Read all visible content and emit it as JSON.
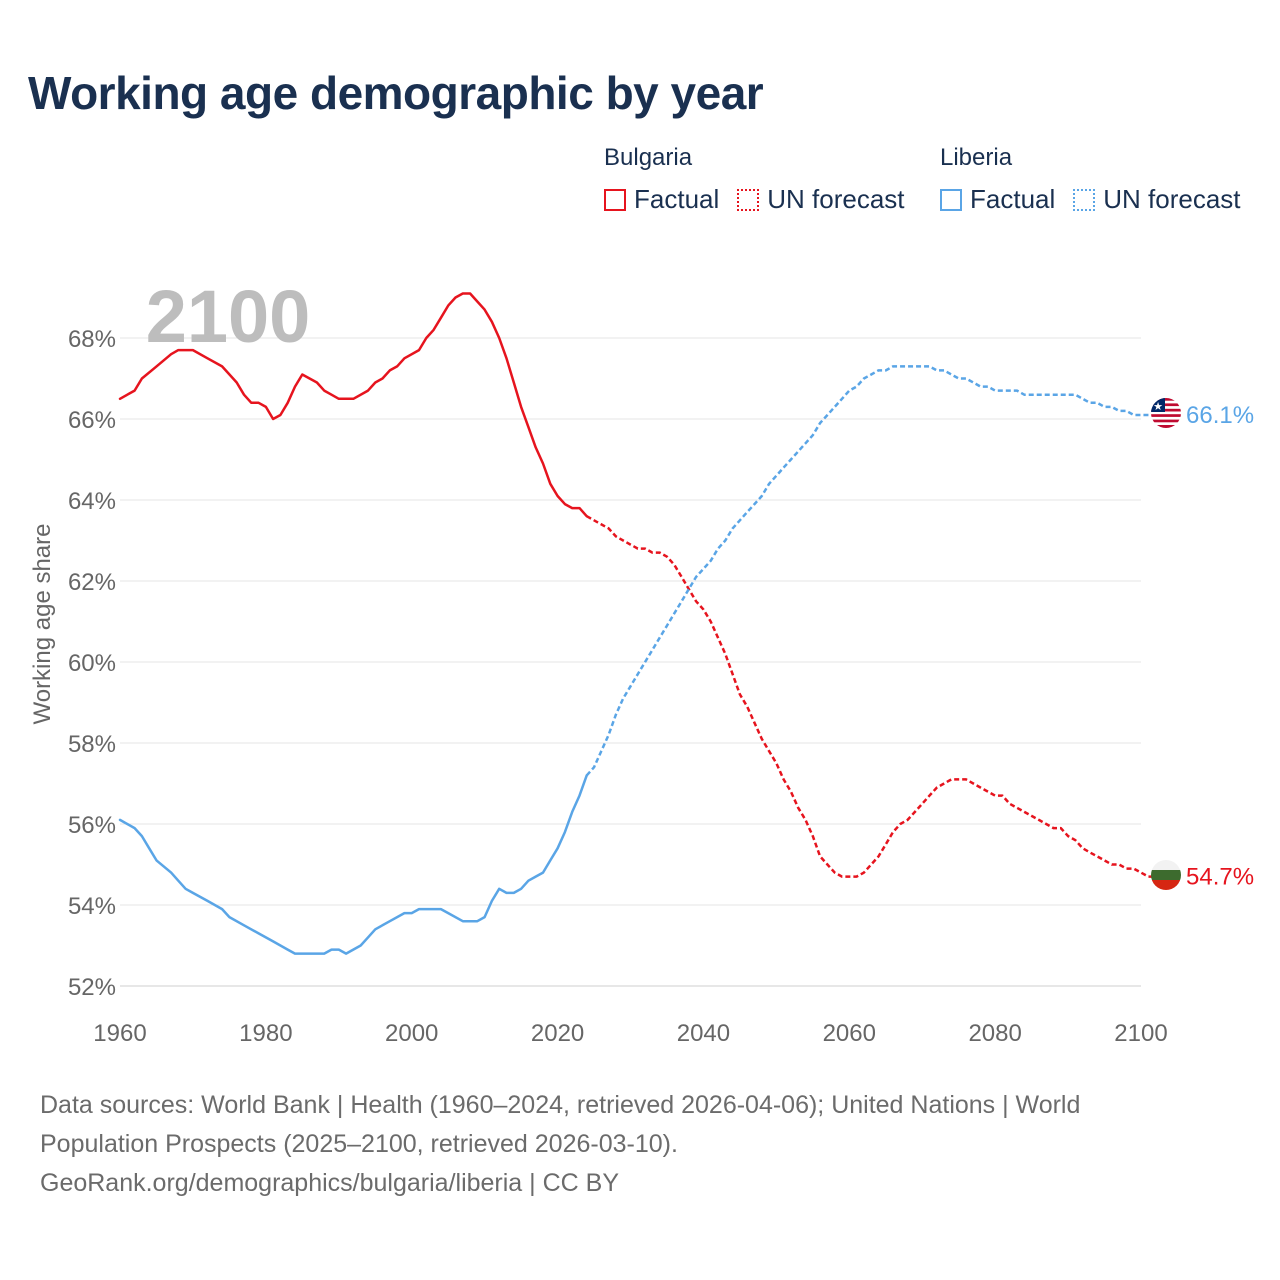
{
  "title": "Working age demographic by year",
  "legend": {
    "bulgaria": {
      "name": "Bulgaria",
      "factual": "Factual",
      "forecast": "UN forecast",
      "color": "#e6141e"
    },
    "liberia": {
      "name": "Liberia",
      "factual": "Factual",
      "forecast": "UN forecast",
      "color": "#5aa5e6"
    }
  },
  "source": {
    "line1": "Data sources: World Bank | Health (1960–2024, retrieved 2026-04-06); United Nations | World",
    "line2": "Population Prospects (2025–2100, retrieved 2026-03-10).",
    "line3": "GeoRank.org/demographics/bulgaria/liberia | CC BY"
  },
  "chart_data": {
    "type": "line",
    "title": "Working age demographic by year",
    "year_label": "2100",
    "ylabel": "Working age share",
    "xlabel": "",
    "xlim": [
      1960,
      2100
    ],
    "ylim": [
      52,
      69.5
    ],
    "x_ticks": [
      1960,
      1980,
      2000,
      2020,
      2040,
      2060,
      2080,
      2100
    ],
    "x_tick_labels": [
      "1960",
      "1980",
      "2000",
      "2020",
      "2040",
      "2060",
      "2080",
      "2100"
    ],
    "y_ticks": [
      52,
      54,
      56,
      58,
      60,
      62,
      64,
      66,
      68
    ],
    "y_tick_labels": [
      "52%",
      "54%",
      "56%",
      "58%",
      "60%",
      "62%",
      "64%",
      "66%",
      "68%"
    ],
    "grid": true,
    "factual_end_year": 2024,
    "series": [
      {
        "name": "Bulgaria",
        "color": "#e6141e",
        "end_label": "54.7%",
        "points": [
          [
            1960,
            66.5
          ],
          [
            1962,
            66.7
          ],
          [
            1963,
            67.0
          ],
          [
            1965,
            67.3
          ],
          [
            1967,
            67.6
          ],
          [
            1968,
            67.7
          ],
          [
            1970,
            67.7
          ],
          [
            1972,
            67.5
          ],
          [
            1974,
            67.3
          ],
          [
            1976,
            66.9
          ],
          [
            1977,
            66.6
          ],
          [
            1978,
            66.4
          ],
          [
            1979,
            66.4
          ],
          [
            1980,
            66.3
          ],
          [
            1981,
            66.0
          ],
          [
            1982,
            66.1
          ],
          [
            1983,
            66.4
          ],
          [
            1984,
            66.8
          ],
          [
            1985,
            67.1
          ],
          [
            1986,
            67.0
          ],
          [
            1987,
            66.9
          ],
          [
            1988,
            66.7
          ],
          [
            1989,
            66.6
          ],
          [
            1990,
            66.5
          ],
          [
            1992,
            66.5
          ],
          [
            1994,
            66.7
          ],
          [
            1995,
            66.9
          ],
          [
            1996,
            67.0
          ],
          [
            1997,
            67.2
          ],
          [
            1998,
            67.3
          ],
          [
            1999,
            67.5
          ],
          [
            2001,
            67.7
          ],
          [
            2002,
            68.0
          ],
          [
            2003,
            68.2
          ],
          [
            2004,
            68.5
          ],
          [
            2005,
            68.8
          ],
          [
            2006,
            69.0
          ],
          [
            2007,
            69.1
          ],
          [
            2008,
            69.1
          ],
          [
            2009,
            68.9
          ],
          [
            2010,
            68.7
          ],
          [
            2011,
            68.4
          ],
          [
            2012,
            68.0
          ],
          [
            2013,
            67.5
          ],
          [
            2014,
            66.9
          ],
          [
            2015,
            66.3
          ],
          [
            2016,
            65.8
          ],
          [
            2017,
            65.3
          ],
          [
            2018,
            64.9
          ],
          [
            2019,
            64.4
          ],
          [
            2020,
            64.1
          ],
          [
            2021,
            63.9
          ],
          [
            2022,
            63.8
          ],
          [
            2023,
            63.8
          ],
          [
            2024,
            63.6
          ],
          [
            2025,
            63.5
          ],
          [
            2027,
            63.3
          ],
          [
            2028,
            63.1
          ],
          [
            2030,
            62.9
          ],
          [
            2031,
            62.8
          ],
          [
            2032,
            62.8
          ],
          [
            2033,
            62.7
          ],
          [
            2034,
            62.7
          ],
          [
            2035,
            62.6
          ],
          [
            2036,
            62.4
          ],
          [
            2037,
            62.1
          ],
          [
            2038,
            61.8
          ],
          [
            2039,
            61.5
          ],
          [
            2040,
            61.3
          ],
          [
            2041,
            61.0
          ],
          [
            2042,
            60.6
          ],
          [
            2043,
            60.2
          ],
          [
            2044,
            59.7
          ],
          [
            2045,
            59.2
          ],
          [
            2046,
            58.9
          ],
          [
            2047,
            58.5
          ],
          [
            2048,
            58.1
          ],
          [
            2049,
            57.8
          ],
          [
            2050,
            57.5
          ],
          [
            2051,
            57.1
          ],
          [
            2052,
            56.8
          ],
          [
            2053,
            56.4
          ],
          [
            2054,
            56.1
          ],
          [
            2055,
            55.7
          ],
          [
            2056,
            55.2
          ],
          [
            2057,
            55.0
          ],
          [
            2058,
            54.8
          ],
          [
            2059,
            54.7
          ],
          [
            2060,
            54.7
          ],
          [
            2061,
            54.7
          ],
          [
            2062,
            54.8
          ],
          [
            2063,
            55.0
          ],
          [
            2064,
            55.2
          ],
          [
            2065,
            55.5
          ],
          [
            2066,
            55.8
          ],
          [
            2067,
            56.0
          ],
          [
            2068,
            56.1
          ],
          [
            2069,
            56.3
          ],
          [
            2070,
            56.5
          ],
          [
            2071,
            56.7
          ],
          [
            2072,
            56.9
          ],
          [
            2073,
            57.0
          ],
          [
            2074,
            57.1
          ],
          [
            2075,
            57.1
          ],
          [
            2076,
            57.1
          ],
          [
            2077,
            57.0
          ],
          [
            2078,
            56.9
          ],
          [
            2079,
            56.8
          ],
          [
            2080,
            56.7
          ],
          [
            2081,
            56.7
          ],
          [
            2082,
            56.5
          ],
          [
            2083,
            56.4
          ],
          [
            2084,
            56.3
          ],
          [
            2085,
            56.2
          ],
          [
            2086,
            56.1
          ],
          [
            2087,
            56.0
          ],
          [
            2088,
            55.9
          ],
          [
            2089,
            55.9
          ],
          [
            2090,
            55.7
          ],
          [
            2091,
            55.6
          ],
          [
            2092,
            55.4
          ],
          [
            2093,
            55.3
          ],
          [
            2094,
            55.2
          ],
          [
            2095,
            55.1
          ],
          [
            2096,
            55.0
          ],
          [
            2097,
            55.0
          ],
          [
            2098,
            54.9
          ],
          [
            2099,
            54.9
          ],
          [
            2100,
            54.8
          ],
          [
            2101,
            54.7
          ],
          [
            2102,
            54.7
          ]
        ]
      },
      {
        "name": "Liberia",
        "color": "#5aa5e6",
        "end_label": "66.1%",
        "points": [
          [
            1960,
            56.1
          ],
          [
            1962,
            55.9
          ],
          [
            1963,
            55.7
          ],
          [
            1964,
            55.4
          ],
          [
            1965,
            55.1
          ],
          [
            1967,
            54.8
          ],
          [
            1968,
            54.6
          ],
          [
            1969,
            54.4
          ],
          [
            1970,
            54.3
          ],
          [
            1972,
            54.1
          ],
          [
            1973,
            54.0
          ],
          [
            1974,
            53.9
          ],
          [
            1975,
            53.7
          ],
          [
            1977,
            53.5
          ],
          [
            1979,
            53.3
          ],
          [
            1981,
            53.1
          ],
          [
            1983,
            52.9
          ],
          [
            1984,
            52.8
          ],
          [
            1986,
            52.8
          ],
          [
            1988,
            52.8
          ],
          [
            1989,
            52.9
          ],
          [
            1990,
            52.9
          ],
          [
            1991,
            52.8
          ],
          [
            1993,
            53.0
          ],
          [
            1994,
            53.2
          ],
          [
            1995,
            53.4
          ],
          [
            1997,
            53.6
          ],
          [
            1999,
            53.8
          ],
          [
            2000,
            53.8
          ],
          [
            2001,
            53.9
          ],
          [
            2003,
            53.9
          ],
          [
            2004,
            53.9
          ],
          [
            2005,
            53.8
          ],
          [
            2007,
            53.6
          ],
          [
            2009,
            53.6
          ],
          [
            2010,
            53.7
          ],
          [
            2011,
            54.1
          ],
          [
            2012,
            54.4
          ],
          [
            2013,
            54.3
          ],
          [
            2014,
            54.3
          ],
          [
            2015,
            54.4
          ],
          [
            2016,
            54.6
          ],
          [
            2017,
            54.7
          ],
          [
            2018,
            54.8
          ],
          [
            2019,
            55.1
          ],
          [
            2020,
            55.4
          ],
          [
            2021,
            55.8
          ],
          [
            2022,
            56.3
          ],
          [
            2023,
            56.7
          ],
          [
            2024,
            57.2
          ],
          [
            2025,
            57.4
          ],
          [
            2026,
            57.8
          ],
          [
            2027,
            58.2
          ],
          [
            2028,
            58.7
          ],
          [
            2029,
            59.1
          ],
          [
            2030,
            59.4
          ],
          [
            2031,
            59.7
          ],
          [
            2032,
            60.0
          ],
          [
            2033,
            60.3
          ],
          [
            2034,
            60.6
          ],
          [
            2035,
            60.9
          ],
          [
            2036,
            61.2
          ],
          [
            2037,
            61.5
          ],
          [
            2038,
            61.8
          ],
          [
            2039,
            62.1
          ],
          [
            2040,
            62.3
          ],
          [
            2041,
            62.5
          ],
          [
            2042,
            62.8
          ],
          [
            2043,
            63.0
          ],
          [
            2044,
            63.3
          ],
          [
            2045,
            63.5
          ],
          [
            2046,
            63.7
          ],
          [
            2047,
            63.9
          ],
          [
            2048,
            64.1
          ],
          [
            2049,
            64.4
          ],
          [
            2050,
            64.6
          ],
          [
            2051,
            64.8
          ],
          [
            2052,
            65.0
          ],
          [
            2053,
            65.2
          ],
          [
            2054,
            65.4
          ],
          [
            2055,
            65.6
          ],
          [
            2056,
            65.9
          ],
          [
            2057,
            66.1
          ],
          [
            2058,
            66.3
          ],
          [
            2059,
            66.5
          ],
          [
            2060,
            66.7
          ],
          [
            2061,
            66.8
          ],
          [
            2062,
            67.0
          ],
          [
            2063,
            67.1
          ],
          [
            2064,
            67.2
          ],
          [
            2065,
            67.2
          ],
          [
            2066,
            67.3
          ],
          [
            2068,
            67.3
          ],
          [
            2070,
            67.3
          ],
          [
            2071,
            67.3
          ],
          [
            2072,
            67.2
          ],
          [
            2073,
            67.2
          ],
          [
            2074,
            67.1
          ],
          [
            2075,
            67.0
          ],
          [
            2076,
            67.0
          ],
          [
            2077,
            66.9
          ],
          [
            2078,
            66.8
          ],
          [
            2079,
            66.8
          ],
          [
            2080,
            66.7
          ],
          [
            2082,
            66.7
          ],
          [
            2083,
            66.7
          ],
          [
            2084,
            66.6
          ],
          [
            2086,
            66.6
          ],
          [
            2088,
            66.6
          ],
          [
            2090,
            66.6
          ],
          [
            2091,
            66.6
          ],
          [
            2092,
            66.5
          ],
          [
            2093,
            66.4
          ],
          [
            2094,
            66.4
          ],
          [
            2095,
            66.3
          ],
          [
            2096,
            66.3
          ],
          [
            2097,
            66.2
          ],
          [
            2098,
            66.2
          ],
          [
            2099,
            66.1
          ],
          [
            2100,
            66.1
          ],
          [
            2102,
            66.1
          ]
        ]
      }
    ]
  }
}
